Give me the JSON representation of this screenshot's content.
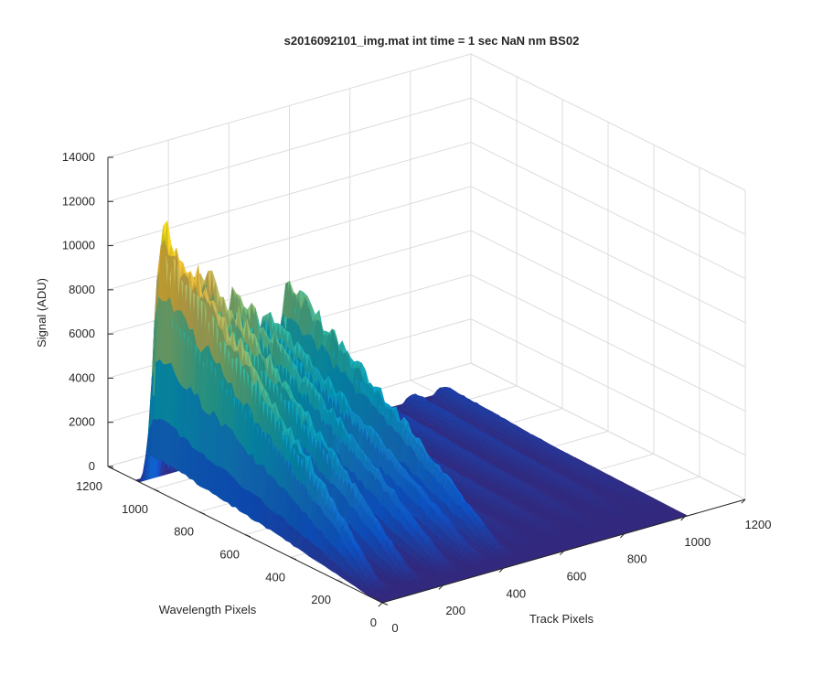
{
  "figure": {
    "title": "s2016092101_img.mat int time = 1 sec  NaN nm BS02"
  },
  "chart_data": {
    "type": "surface",
    "title": "s2016092101_img.mat int time = 1 sec  NaN nm BS02",
    "xlabel": "Track Pixels",
    "ylabel": "Wavelength Pixels",
    "zlabel": "Signal (ADU)",
    "xlim": [
      0,
      1200
    ],
    "ylim": [
      0,
      1200
    ],
    "zlim": [
      0,
      14000
    ],
    "xticks": [
      "0",
      "200",
      "400",
      "600",
      "800",
      "1000",
      "1200"
    ],
    "yticks": [
      "0",
      "200",
      "400",
      "600",
      "800",
      "1000",
      "1200"
    ],
    "zticks": [
      "0",
      "2000",
      "4000",
      "6000",
      "8000",
      "10000",
      "12000",
      "14000"
    ],
    "grid": true,
    "colormap": "parula",
    "colors": [
      "#352a87",
      "#0f5cdd",
      "#1481d6",
      "#06a4ca",
      "#2eb7a4",
      "#87bf77",
      "#d1bb59",
      "#fec832",
      "#f9fb0e"
    ],
    "data_extent": {
      "track_pixels": [
        0,
        1010
      ],
      "wavelength_pixels": [
        0,
        1080
      ]
    },
    "track_bands": [
      {
        "track_center": 40,
        "peak_signal": 11500
      },
      {
        "track_center": 150,
        "peak_signal": 9500
      },
      {
        "track_center": 270,
        "peak_signal": 7800
      },
      {
        "track_center": 370,
        "peak_signal": 6500
      },
      {
        "track_center": 450,
        "peak_signal": 7500
      },
      {
        "track_center": 545,
        "peak_signal": 1100
      },
      {
        "track_center": 650,
        "peak_signal": 1000
      },
      {
        "track_center": 760,
        "peak_signal": 900
      },
      {
        "track_center": 870,
        "peak_signal": 850
      },
      {
        "track_center": 970,
        "peak_signal": 800
      }
    ]
  }
}
